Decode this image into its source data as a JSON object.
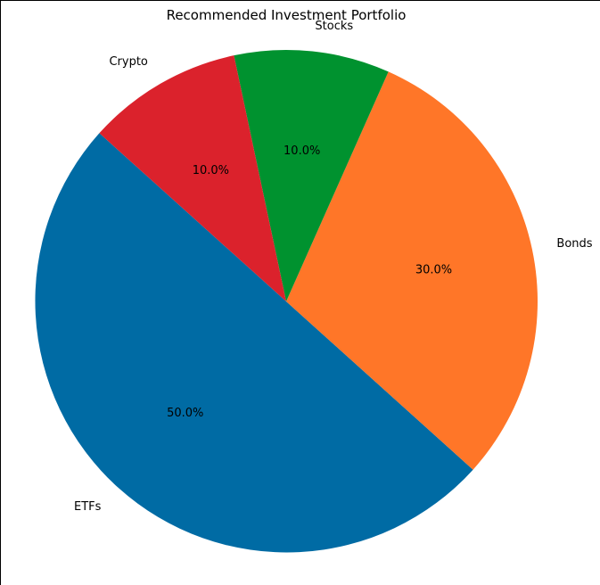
{
  "chart_data": {
    "type": "pie",
    "title": "Recommended Investment Portfolio",
    "start_angle_deg": 138,
    "direction": "counterclockwise",
    "slices": [
      {
        "label": "ETFs",
        "value": 50.0,
        "pct_label": "50.0%",
        "color": "#006ba4"
      },
      {
        "label": "Bonds",
        "value": 30.0,
        "pct_label": "30.0%",
        "color": "#ff7628"
      },
      {
        "label": "Stocks",
        "value": 10.0,
        "pct_label": "10.0%",
        "color": "#00922f"
      },
      {
        "label": "Crypto",
        "value": 10.0,
        "pct_label": "10.0%",
        "color": "#db222c"
      }
    ]
  }
}
